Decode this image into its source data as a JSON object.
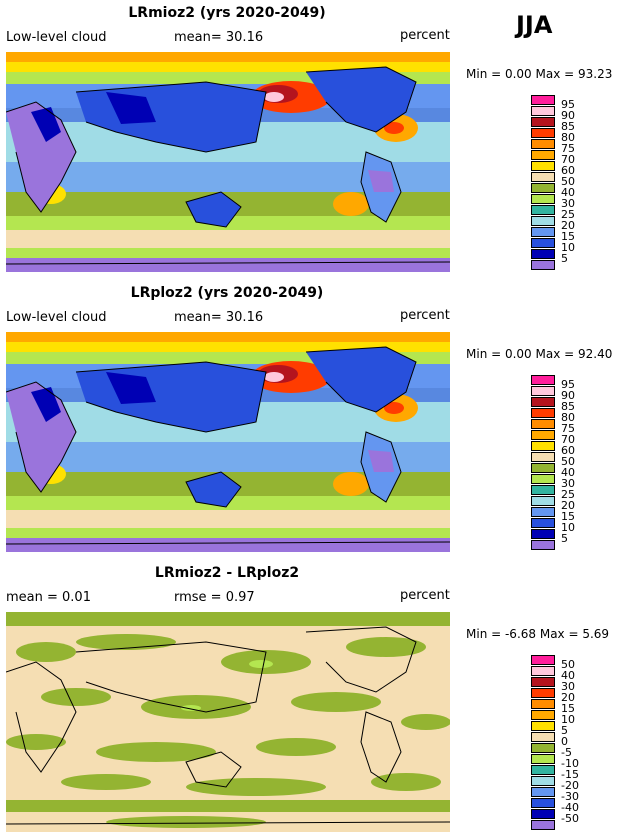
{
  "season": "JJA",
  "panels": [
    {
      "title": "LRmioz2 (yrs 2020-2049)",
      "left_label": "Low-level cloud",
      "center_label": "mean=  30.16",
      "right_label": "percent",
      "minmax": "Min =    0.00 Max =  93.23",
      "type": "abs"
    },
    {
      "title": "LRploz2 (yrs 2020-2049)",
      "left_label": "Low-level cloud",
      "center_label": "mean=  30.16",
      "right_label": "percent",
      "minmax": "Min =    0.00 Max =  92.40",
      "type": "abs"
    },
    {
      "title": "LRmioz2 - LRploz2",
      "left_label": "mean =   0.01",
      "center_label": "rmse =   0.97",
      "right_label": "percent",
      "minmax": "Min =  -6.68 Max =   5.69",
      "type": "diff"
    }
  ],
  "legends": [
    {
      "labels": [
        "95",
        "90",
        "85",
        "80",
        "75",
        "70",
        "60",
        "50",
        "40",
        "30",
        "25",
        "20",
        "15",
        "10",
        "5"
      ],
      "colors": [
        "#ff1e9b",
        "#ffc8dc",
        "#b4141e",
        "#ff3c00",
        "#ff8c00",
        "#ffa800",
        "#ffe100",
        "#f5deb3",
        "#94b432",
        "#b4e650",
        "#32b4a0",
        "#a0dce6",
        "#6496f0",
        "#2850dc",
        "#0000b4",
        "#9a74dc"
      ]
    },
    {
      "labels": [
        "95",
        "90",
        "85",
        "80",
        "75",
        "70",
        "60",
        "50",
        "40",
        "30",
        "25",
        "20",
        "15",
        "10",
        "5"
      ],
      "colors": [
        "#ff1e9b",
        "#ffc8dc",
        "#b4141e",
        "#ff3c00",
        "#ff8c00",
        "#ffa800",
        "#ffe100",
        "#f5deb3",
        "#94b432",
        "#b4e650",
        "#32b4a0",
        "#a0dce6",
        "#6496f0",
        "#2850dc",
        "#0000b4",
        "#9a74dc"
      ]
    },
    {
      "labels": [
        "50",
        "40",
        "30",
        "20",
        "15",
        "10",
        "5",
        "0",
        "-5",
        "-10",
        "-15",
        "-20",
        "-30",
        "-40",
        "-50"
      ],
      "colors": [
        "#ff1e9b",
        "#ffc8dc",
        "#b4141e",
        "#ff3c00",
        "#ff8c00",
        "#ffa800",
        "#ffe100",
        "#f5deb3",
        "#94b432",
        "#b4e650",
        "#32b4a0",
        "#a0dce6",
        "#6496f0",
        "#2850dc",
        "#0000b4",
        "#9a74dc"
      ]
    }
  ]
}
